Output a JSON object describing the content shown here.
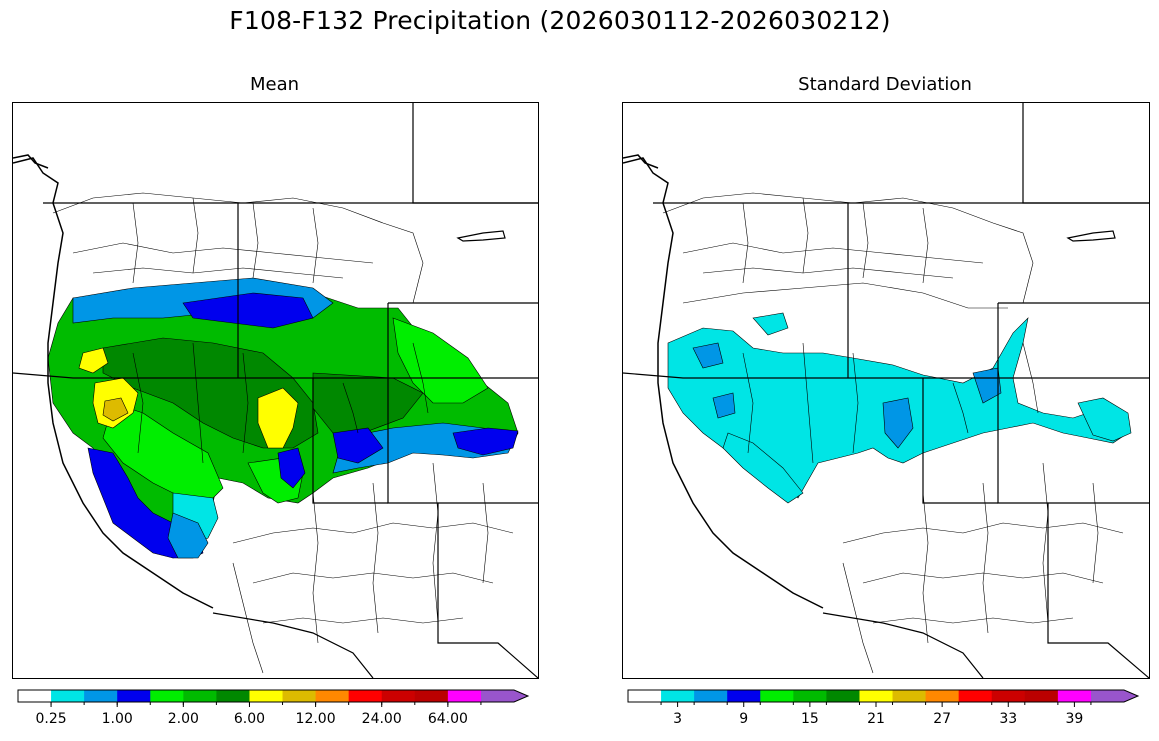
{
  "figure": {
    "title": "F108-F132 Precipitation (2026030112-2026030212)"
  },
  "panels": [
    {
      "id": "mean",
      "title": "Mean",
      "colorbar": {
        "colors": [
          "#ffffff",
          "#00e5e5",
          "#0096e6",
          "#0000ee",
          "#00ee00",
          "#00bb00",
          "#008800",
          "#ffff00",
          "#ddbb00",
          "#ff8800",
          "#ff0000",
          "#cc0000",
          "#bb0000",
          "#ff00ff",
          "#9955cc"
        ],
        "tick_labels": [
          "0.25",
          "1.00",
          "2.00",
          "6.00",
          "12.00",
          "24.00",
          "64.00"
        ],
        "tick_label_bins": [
          1,
          3,
          5,
          7,
          9,
          11,
          13
        ],
        "extend": "max"
      }
    },
    {
      "id": "sd",
      "title": "Standard Deviation",
      "colorbar": {
        "colors": [
          "#ffffff",
          "#00e5e5",
          "#0096e6",
          "#0000ee",
          "#00ee00",
          "#00bb00",
          "#008800",
          "#ffff00",
          "#ddbb00",
          "#ff8800",
          "#ff0000",
          "#cc0000",
          "#bb0000",
          "#ff00ff",
          "#9955cc"
        ],
        "tick_labels": [
          "3",
          "9",
          "15",
          "21",
          "27",
          "33",
          "39"
        ],
        "tick_label_bins": [
          1.5,
          3.5,
          5.5,
          7.5,
          9.5,
          11.5,
          13.5
        ],
        "extend": "max"
      }
    }
  ]
}
